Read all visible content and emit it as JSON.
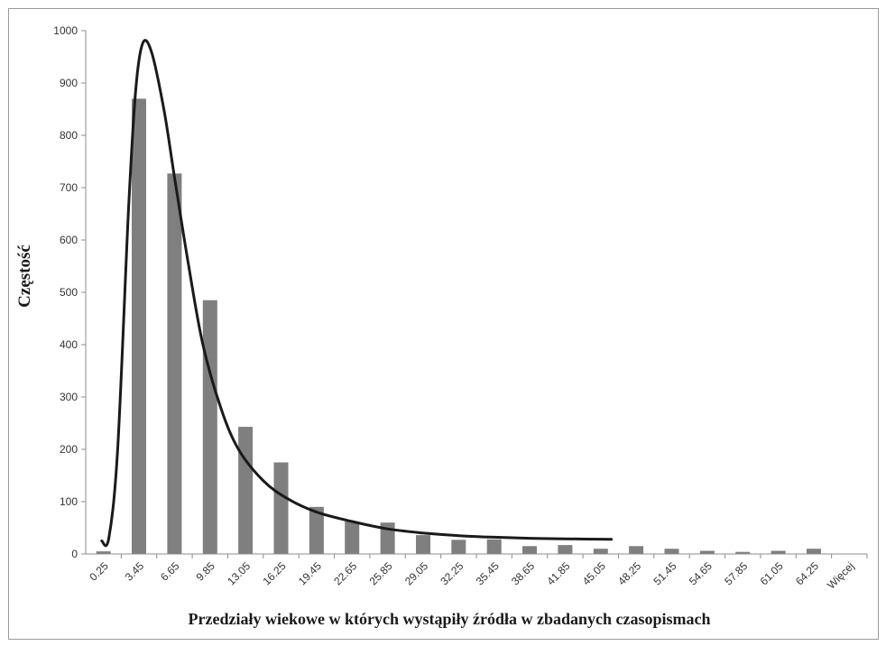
{
  "chart_data": {
    "type": "bar",
    "title": "",
    "xlabel": "Przedziały wiekowe w których wystąpiły źródła w zbadanych czasopismach",
    "ylabel": "Częstość",
    "ylim": [
      0,
      1000
    ],
    "yticks": [
      "0",
      "100",
      "200",
      "300",
      "400",
      "500",
      "600",
      "700",
      "800",
      "900",
      "1000"
    ],
    "grid": false,
    "legend": "none",
    "bar_color": "#7f7f7f",
    "curve_color": "#1a1a1a",
    "categories": [
      "0.25",
      "3.45",
      "6.65",
      "9.85",
      "13.05",
      "16.25",
      "19.45",
      "22.65",
      "25.85",
      "29.05",
      "32.25",
      "35.45",
      "38.65",
      "41.85",
      "45.05",
      "48.25",
      "51.45",
      "54.65",
      "57.85",
      "61.05",
      "64.25",
      "Więcej"
    ],
    "series": [
      {
        "type": "bar",
        "values": [
          5,
          870,
          727,
          485,
          243,
          175,
          90,
          62,
          60,
          36,
          27,
          28,
          15,
          17,
          10,
          15,
          10,
          6,
          4,
          6,
          10,
          0
        ]
      },
      {
        "type": "line",
        "smooth": true,
        "points": [
          [
            -0.05,
            25
          ],
          [
            0.15,
            30
          ],
          [
            0.4,
            200
          ],
          [
            0.7,
            650
          ],
          [
            0.9,
            880
          ],
          [
            1.1,
            975
          ],
          [
            1.35,
            960
          ],
          [
            1.7,
            850
          ],
          [
            2.0,
            720
          ],
          [
            2.4,
            550
          ],
          [
            2.8,
            400
          ],
          [
            3.3,
            280
          ],
          [
            3.8,
            200
          ],
          [
            4.5,
            140
          ],
          [
            5.2,
            105
          ],
          [
            6.0,
            80
          ],
          [
            7.0,
            62
          ],
          [
            8.0,
            48
          ],
          [
            9.0,
            40
          ],
          [
            10.0,
            35
          ],
          [
            11.0,
            32
          ],
          [
            12.0,
            30
          ],
          [
            13.0,
            29
          ],
          [
            14.3,
            28
          ]
        ]
      }
    ]
  }
}
